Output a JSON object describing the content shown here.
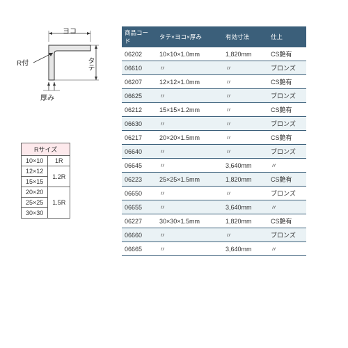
{
  "diagram": {
    "yoko": "ヨコ",
    "tate": "タテ",
    "r": "R付",
    "atsumi": "厚み"
  },
  "r_table": {
    "header": "Rサイズ",
    "rows": [
      {
        "size": "10×10",
        "r": "1R",
        "rspan": 1
      },
      {
        "size": "12×12",
        "r": "1.2R",
        "rspan": 2
      },
      {
        "size": "15×15",
        "r": "",
        "rspan": 0
      },
      {
        "size": "20×20",
        "r": "1.5R",
        "rspan": 3
      },
      {
        "size": "25×25",
        "r": "",
        "rspan": 0
      },
      {
        "size": "30×30",
        "r": "",
        "rspan": 0
      }
    ]
  },
  "main_table": {
    "headers": {
      "code": "商品コード",
      "dims": "タテ×ヨコ×厚み",
      "len": "有効寸法",
      "fin": "仕上"
    },
    "rows": [
      {
        "code": "06202",
        "dims": "10×10×1.0mm",
        "len": "1,820mm",
        "fin": "CS艶有",
        "alt": false
      },
      {
        "code": "06610",
        "dims": "〃",
        "len": "〃",
        "fin": "ブロンズ",
        "alt": true
      },
      {
        "code": "06207",
        "dims": "12×12×1.0mm",
        "len": "〃",
        "fin": "CS艶有",
        "alt": false
      },
      {
        "code": "06625",
        "dims": "〃",
        "len": "〃",
        "fin": "ブロンズ",
        "alt": true
      },
      {
        "code": "06212",
        "dims": "15×15×1.2mm",
        "len": "〃",
        "fin": "CS艶有",
        "alt": false
      },
      {
        "code": "06630",
        "dims": "〃",
        "len": "〃",
        "fin": "ブロンズ",
        "alt": true
      },
      {
        "code": "06217",
        "dims": "20×20×1.5mm",
        "len": "〃",
        "fin": "CS艶有",
        "alt": false
      },
      {
        "code": "06640",
        "dims": "〃",
        "len": "〃",
        "fin": "ブロンズ",
        "alt": true
      },
      {
        "code": "06645",
        "dims": "〃",
        "len": "3,640mm",
        "fin": "〃",
        "alt": false
      },
      {
        "code": "06223",
        "dims": "25×25×1.5mm",
        "len": "1,820mm",
        "fin": "CS艶有",
        "alt": true
      },
      {
        "code": "06650",
        "dims": "〃",
        "len": "〃",
        "fin": "ブロンズ",
        "alt": false
      },
      {
        "code": "06655",
        "dims": "〃",
        "len": "3,640mm",
        "fin": "〃",
        "alt": true
      },
      {
        "code": "06227",
        "dims": "30×30×1.5mm",
        "len": "1,820mm",
        "fin": "CS艶有",
        "alt": false
      },
      {
        "code": "06660",
        "dims": "〃",
        "len": "〃",
        "fin": "ブロンズ",
        "alt": true
      },
      {
        "code": "06665",
        "dims": "〃",
        "len": "3,640mm",
        "fin": "〃",
        "alt": false
      }
    ]
  }
}
